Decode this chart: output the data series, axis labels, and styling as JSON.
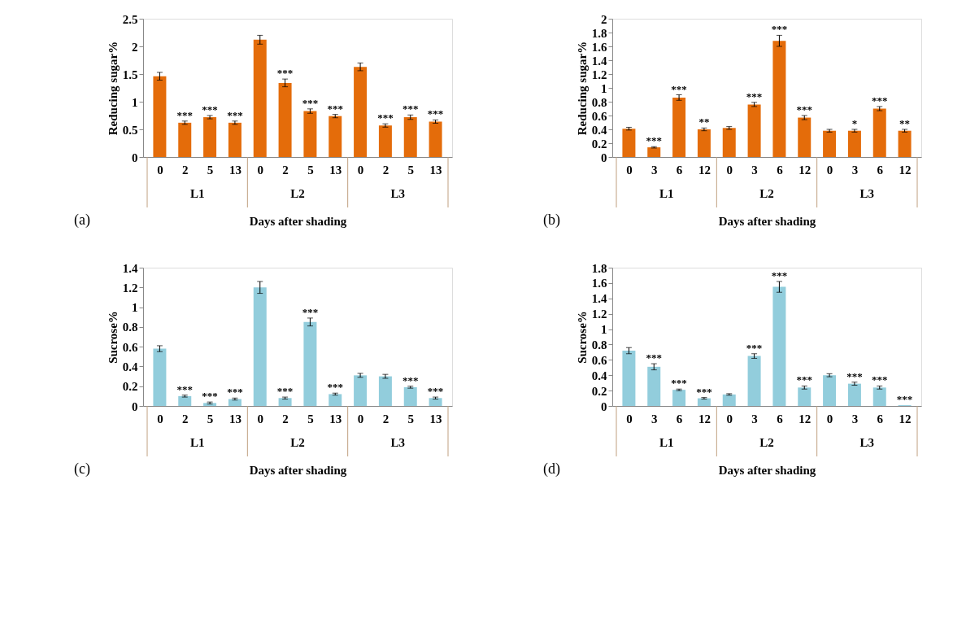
{
  "chart_data": [
    {
      "type": "bar",
      "categories": [
        "0",
        "2",
        "5",
        "13",
        "0",
        "2",
        "5",
        "13",
        "0",
        "2",
        "5",
        "13"
      ],
      "values": [
        1.46,
        0.62,
        0.72,
        0.62,
        2.12,
        1.34,
        0.83,
        0.74,
        1.63,
        0.57,
        0.72,
        0.64
      ],
      "errors": [
        0.07,
        0.03,
        0.03,
        0.03,
        0.08,
        0.07,
        0.04,
        0.03,
        0.07,
        0.03,
        0.04,
        0.03
      ],
      "value_labels": [
        null,
        "***",
        "***",
        "***",
        null,
        "***",
        "***",
        "***",
        null,
        "***",
        "***",
        "***"
      ],
      "color": "#e46c0a",
      "ylabel": "Reducing sugar%",
      "xlabel": "Days after shading",
      "ylim": [
        0,
        2.5
      ],
      "yticks": [
        0,
        0.5,
        1,
        1.5,
        2,
        2.5
      ],
      "annotations": [
        "(a)",
        "L1",
        "L2",
        "L3"
      ]
    },
    {
      "type": "bar",
      "categories": [
        "0",
        "3",
        "6",
        "12",
        "0",
        "3",
        "6",
        "12",
        "0",
        "3",
        "6",
        "12"
      ],
      "values": [
        0.41,
        0.14,
        0.86,
        0.4,
        0.42,
        0.76,
        1.68,
        0.57,
        0.38,
        0.38,
        0.7,
        0.38
      ],
      "errors": [
        0.02,
        0.01,
        0.04,
        0.02,
        0.02,
        0.03,
        0.08,
        0.03,
        0.02,
        0.02,
        0.03,
        0.02
      ],
      "value_labels": [
        null,
        "***",
        "***",
        "**",
        null,
        "***",
        "***",
        "***",
        null,
        "*",
        "***",
        "**"
      ],
      "color": "#e46c0a",
      "ylabel": "Reducing sugar%",
      "xlabel": "Days after shading",
      "ylim": [
        0,
        2
      ],
      "yticks": [
        0,
        0.2,
        0.4,
        0.6,
        0.8,
        1,
        1.2,
        1.4,
        1.6,
        1.8,
        2
      ],
      "annotations": [
        "(b)",
        "L1",
        "L2",
        "L3"
      ]
    },
    {
      "type": "bar",
      "categories": [
        "0",
        "2",
        "5",
        "13",
        "0",
        "2",
        "5",
        "13",
        "0",
        "2",
        "5",
        "13"
      ],
      "values": [
        0.58,
        0.1,
        0.03,
        0.07,
        1.2,
        0.08,
        0.85,
        0.12,
        0.31,
        0.3,
        0.19,
        0.08
      ],
      "errors": [
        0.03,
        0.01,
        0.01,
        0.01,
        0.06,
        0.01,
        0.04,
        0.01,
        0.02,
        0.02,
        0.01,
        0.01
      ],
      "value_labels": [
        null,
        "***",
        "***",
        "***",
        null,
        "***",
        "***",
        "***",
        null,
        null,
        "***",
        "***"
      ],
      "color": "#92cddc",
      "ylabel": "Sucrose%",
      "xlabel": "Days after shading",
      "ylim": [
        0,
        1.4
      ],
      "yticks": [
        0,
        0.2,
        0.4,
        0.6,
        0.8,
        1,
        1.2,
        1.4
      ],
      "annotations": [
        "(c)",
        "L1",
        "L2",
        "L3"
      ]
    },
    {
      "type": "bar",
      "categories": [
        "0",
        "3",
        "6",
        "12",
        "0",
        "3",
        "6",
        "12",
        "0",
        "3",
        "6",
        "12"
      ],
      "values": [
        0.72,
        0.51,
        0.21,
        0.1,
        0.15,
        0.65,
        1.55,
        0.24,
        0.4,
        0.29,
        0.24,
        0.01
      ],
      "errors": [
        0.04,
        0.04,
        0.01,
        0.01,
        0.01,
        0.03,
        0.07,
        0.02,
        0.02,
        0.02,
        0.02,
        null
      ],
      "value_labels": [
        null,
        "***",
        "***",
        "***",
        null,
        "***",
        "***",
        "***",
        null,
        "***",
        "***",
        "***"
      ],
      "color": "#92cddc",
      "ylabel": "Sucrose%",
      "xlabel": "Days after shading",
      "ylim": [
        0,
        1.8
      ],
      "yticks": [
        0,
        0.2,
        0.4,
        0.6,
        0.8,
        1,
        1.2,
        1.4,
        1.6,
        1.8
      ],
      "annotations": [
        "(d)",
        "L1",
        "L2",
        "L3"
      ]
    }
  ]
}
